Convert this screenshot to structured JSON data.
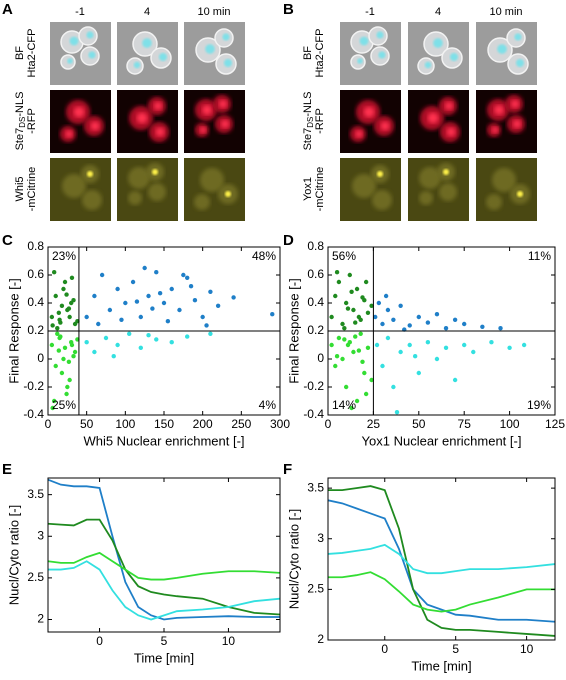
{
  "panels": {
    "A": {
      "label": "A",
      "columns": [
        "-1",
        "4",
        "10 min"
      ],
      "rows": [
        [
          "BF",
          "Hta2-CFP"
        ],
        [
          "Ste7",
          "DS",
          "-NLS",
          "-RFP"
        ],
        [
          "Whi5",
          "-mCitrine"
        ]
      ]
    },
    "B": {
      "label": "B",
      "columns": [
        "-1",
        "4",
        "10 min"
      ],
      "rows": [
        [
          "BF",
          "Hta2-CFP"
        ],
        [
          "Ste7",
          "DS",
          "-NLS",
          "-RFP"
        ],
        [
          "Yox1",
          "-mCitrine"
        ]
      ]
    }
  },
  "chart_data": [
    {
      "type": "scatter",
      "panel": "C",
      "xlabel": "Whi5 Nuclear enrichment [-]",
      "ylabel": "Final Response [-]",
      "xlim": [
        0,
        300
      ],
      "xticks": [
        0,
        50,
        100,
        150,
        200,
        250,
        300
      ],
      "ylim": [
        -0.4,
        0.8
      ],
      "yticks": [
        -0.4,
        -0.2,
        0,
        0.2,
        0.4,
        0.6,
        0.8
      ],
      "thresholds": {
        "x": 40,
        "y": 0.2
      },
      "annotations": [
        "23%",
        "48%",
        "25%",
        "4%"
      ],
      "series": [
        {
          "color": "#1f8a1f",
          "x": [
            5,
            10,
            15,
            20,
            25,
            30,
            35,
            8,
            12,
            18,
            22,
            28,
            33,
            38,
            6,
            14,
            24,
            31,
            16,
            27
          ],
          "values": [
            0.3,
            0.45,
            0.28,
            0.5,
            0.35,
            0.4,
            0.25,
            0.62,
            0.22,
            0.38,
            0.55,
            0.3,
            0.42,
            0.27,
            0.24,
            0.33,
            0.46,
            0.58,
            0.26,
            0.36
          ]
        },
        {
          "color": "#33dd33",
          "x": [
            5,
            10,
            15,
            20,
            25,
            30,
            35,
            8,
            12,
            18,
            22,
            28,
            33,
            38,
            6,
            14,
            24,
            31,
            16,
            27
          ],
          "values": [
            0.1,
            -0.05,
            0.15,
            0.0,
            -0.2,
            0.12,
            0.05,
            -0.3,
            0.18,
            -0.1,
            0.08,
            -0.15,
            0.02,
            0.14,
            -0.35,
            0.06,
            -0.25,
            0.1,
            0.16,
            -0.02
          ]
        },
        {
          "color": "#1f7fc8",
          "x": [
            50,
            60,
            70,
            80,
            90,
            100,
            110,
            120,
            130,
            140,
            150,
            160,
            170,
            180,
            190,
            200,
            210,
            220,
            240,
            290,
            65,
            95,
            125,
            155,
            185,
            135,
            115,
            145,
            175,
            205
          ],
          "values": [
            0.3,
            0.45,
            0.6,
            0.35,
            0.5,
            0.4,
            0.55,
            0.3,
            0.45,
            0.62,
            0.4,
            0.5,
            0.35,
            0.58,
            0.42,
            0.3,
            0.48,
            0.38,
            0.44,
            0.32,
            0.25,
            0.28,
            0.65,
            0.27,
            0.52,
            0.36,
            0.41,
            0.47,
            0.6,
            0.24
          ]
        },
        {
          "color": "#33e0e0",
          "x": [
            50,
            60,
            75,
            90,
            105,
            120,
            140,
            160,
            180,
            210,
            85,
            130
          ],
          "values": [
            0.12,
            0.05,
            0.15,
            0.1,
            0.18,
            0.08,
            0.14,
            0.12,
            0.16,
            0.18,
            0.02,
            0.17
          ]
        }
      ]
    },
    {
      "type": "scatter",
      "panel": "D",
      "xlabel": "Yox1 Nuclear enrichment [-]",
      "ylabel": "Final Response [-]",
      "xlim": [
        0,
        125
      ],
      "xticks": [
        0,
        25,
        50,
        75,
        100,
        125
      ],
      "ylim": [
        -0.4,
        0.8
      ],
      "yticks": [
        -0.4,
        -0.2,
        0,
        0.2,
        0.4,
        0.6,
        0.8
      ],
      "thresholds": {
        "x": 25,
        "y": 0.2
      },
      "annotations": [
        "56%",
        "11%",
        "14%",
        "19%"
      ],
      "series": [
        {
          "color": "#1f8a1f",
          "x": [
            2,
            4,
            6,
            8,
            10,
            12,
            14,
            16,
            18,
            20,
            22,
            24,
            5,
            9,
            13,
            17,
            21,
            11,
            15,
            19
          ],
          "values": [
            0.3,
            0.45,
            0.55,
            0.25,
            0.4,
            0.6,
            0.35,
            0.5,
            0.28,
            0.42,
            0.33,
            0.38,
            0.62,
            0.22,
            0.48,
            0.3,
            0.55,
            0.36,
            0.26,
            0.44
          ]
        },
        {
          "color": "#33dd33",
          "x": [
            2,
            4,
            6,
            8,
            10,
            12,
            14,
            16,
            18,
            20,
            22,
            24,
            5,
            9,
            13,
            17,
            21,
            11,
            15,
            19
          ],
          "values": [
            0.1,
            -0.05,
            0.15,
            0.0,
            -0.2,
            0.12,
            0.05,
            -0.3,
            0.18,
            -0.1,
            0.08,
            -0.15,
            0.02,
            0.14,
            -0.35,
            0.06,
            -0.25,
            0.1,
            0.16,
            -0.02
          ]
        },
        {
          "color": "#1f7fc8",
          "x": [
            26,
            28,
            30,
            33,
            36,
            40,
            45,
            50,
            55,
            60,
            65,
            70,
            75,
            85,
            95,
            32,
            42
          ],
          "values": [
            0.3,
            0.4,
            0.25,
            0.35,
            0.28,
            0.38,
            0.24,
            0.3,
            0.26,
            0.32,
            0.22,
            0.28,
            0.25,
            0.23,
            0.22,
            0.45,
            0.21
          ]
        },
        {
          "color": "#33e0e0",
          "x": [
            27,
            30,
            33,
            36,
            40,
            45,
            50,
            55,
            60,
            65,
            70,
            75,
            80,
            90,
            100,
            108,
            38,
            48
          ],
          "values": [
            0.1,
            -0.05,
            0.15,
            -0.2,
            0.05,
            0.1,
            -0.1,
            0.12,
            0.0,
            0.08,
            -0.15,
            0.1,
            0.05,
            0.12,
            0.08,
            0.1,
            -0.38,
            0.02
          ]
        }
      ]
    },
    {
      "type": "line",
      "panel": "E",
      "xlabel": "Time [min]",
      "ylabel": "Nucl/Cyto ratio [-]",
      "xlim": [
        -4,
        14
      ],
      "xticks": [
        0,
        5,
        10
      ],
      "ylim": [
        1.85,
        3.7
      ],
      "yticks": [
        2,
        2.5,
        3,
        3.5
      ],
      "x": [
        -4,
        -3,
        -2,
        -1,
        0,
        1,
        2,
        3,
        4,
        5,
        6,
        8,
        10,
        12,
        14
      ],
      "series": [
        {
          "color": "#1f7fc8",
          "values": [
            3.68,
            3.62,
            3.6,
            3.6,
            3.58,
            3.0,
            2.45,
            2.15,
            2.05,
            2.0,
            2.02,
            2.03,
            2.04,
            2.03,
            2.03
          ]
        },
        {
          "color": "#1f8a1f",
          "values": [
            3.15,
            3.14,
            3.13,
            3.2,
            3.2,
            2.95,
            2.6,
            2.4,
            2.33,
            2.3,
            2.28,
            2.25,
            2.15,
            2.08,
            2.06
          ]
        },
        {
          "color": "#33dd33",
          "values": [
            2.7,
            2.68,
            2.68,
            2.75,
            2.8,
            2.7,
            2.6,
            2.5,
            2.48,
            2.48,
            2.5,
            2.55,
            2.58,
            2.58,
            2.56
          ]
        },
        {
          "color": "#33e0e0",
          "values": [
            2.6,
            2.6,
            2.62,
            2.7,
            2.6,
            2.35,
            2.15,
            2.05,
            2.0,
            2.05,
            2.1,
            2.12,
            2.15,
            2.22,
            2.25
          ]
        }
      ]
    },
    {
      "type": "line",
      "panel": "F",
      "xlabel": "Time [min]",
      "ylabel": "Nucl/Cyto ratio [-]",
      "xlim": [
        -4,
        12
      ],
      "xticks": [
        0,
        5,
        10
      ],
      "ylim": [
        2,
        3.6
      ],
      "yticks": [
        2,
        2.5,
        3,
        3.5
      ],
      "x": [
        -4,
        -3,
        -2,
        -1,
        0,
        1,
        2,
        3,
        4,
        5,
        6,
        8,
        10,
        12
      ],
      "series": [
        {
          "color": "#1f7fc8",
          "values": [
            3.38,
            3.35,
            3.3,
            3.25,
            3.2,
            2.9,
            2.5,
            2.35,
            2.3,
            2.25,
            2.24,
            2.2,
            2.2,
            2.18
          ]
        },
        {
          "color": "#1f8a1f",
          "values": [
            3.48,
            3.48,
            3.5,
            3.52,
            3.48,
            3.1,
            2.5,
            2.2,
            2.12,
            2.1,
            2.1,
            2.08,
            2.06,
            2.04
          ]
        },
        {
          "color": "#33dd33",
          "values": [
            2.62,
            2.62,
            2.64,
            2.67,
            2.6,
            2.48,
            2.35,
            2.3,
            2.28,
            2.3,
            2.35,
            2.42,
            2.5,
            2.5
          ]
        },
        {
          "color": "#33e0e0",
          "values": [
            2.85,
            2.86,
            2.88,
            2.9,
            2.94,
            2.85,
            2.7,
            2.66,
            2.66,
            2.68,
            2.7,
            2.7,
            2.72,
            2.75
          ]
        }
      ]
    }
  ]
}
